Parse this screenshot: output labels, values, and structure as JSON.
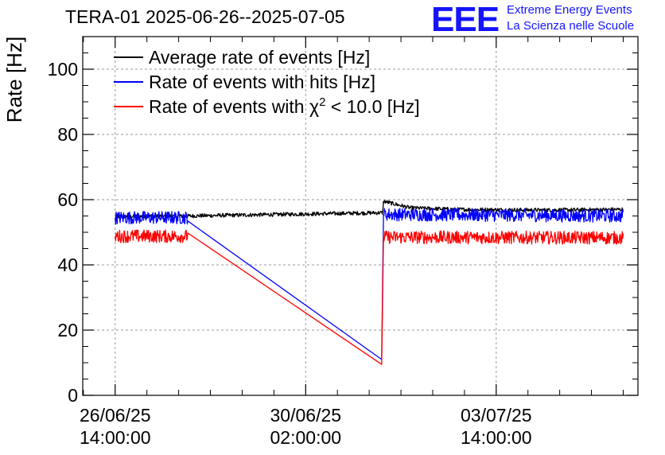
{
  "header": {
    "title": "TERA-01 2025-06-26--2025-07-05",
    "logo_text": "EEE",
    "logo_line1": "Extreme Energy Events",
    "logo_line2": "La Scienza nelle Scuole"
  },
  "chart_data": {
    "type": "line",
    "ylabel": "Rate [Hz]",
    "xlabel": "",
    "ylim": [
      0,
      110
    ],
    "yticks": [
      0,
      20,
      40,
      60,
      80,
      100
    ],
    "xlim_hours": [
      -14.3,
      230.5
    ],
    "xticks": [
      {
        "hours": 0,
        "line1": "26/06/25",
        "line2": "14:00:00"
      },
      {
        "hours": 84,
        "line1": "30/06/25",
        "line2": "02:00:00"
      },
      {
        "hours": 168,
        "line1": "03/07/25",
        "line2": "14:00:00"
      }
    ],
    "grid": true,
    "legend_position": "top-left",
    "legend": [
      {
        "label_main": "Average rate of events [Hz]",
        "label_sup": "",
        "label_tail": "",
        "color": "#000000"
      },
      {
        "label_main": "Rate of events with hits [Hz]",
        "label_sup": "",
        "label_tail": "",
        "color": "#0000ff"
      },
      {
        "label_main": "Rate of events with χ",
        "label_sup": "2",
        "label_tail": " < 10.0 [Hz]",
        "color": "#ff0000"
      }
    ],
    "series": [
      {
        "name": "Average rate of events [Hz]",
        "color": "#000000",
        "points": [
          {
            "x_hours": 0,
            "y": 54.8
          },
          {
            "x_hours": 32,
            "y": 55.0
          },
          {
            "x_hours": 118,
            "y": 56.0
          },
          {
            "x_hours": 118.3,
            "y": 59.5
          },
          {
            "x_hours": 130,
            "y": 57.5
          },
          {
            "x_hours": 150,
            "y": 57.0
          },
          {
            "x_hours": 190,
            "y": 56.8
          },
          {
            "x_hours": 224,
            "y": 57.0
          }
        ]
      },
      {
        "name": "Rate of events with hits [Hz]",
        "color": "#0000ff",
        "points": [
          {
            "x_hours": 0,
            "y": 54.5
          },
          {
            "x_hours": 32,
            "y": 54.5
          },
          {
            "x_hours": 117.5,
            "y": 11.0
          },
          {
            "x_hours": 118.3,
            "y": 55.5
          },
          {
            "x_hours": 224,
            "y": 55.0
          }
        ]
      },
      {
        "name": "Rate of events with χ² < 10.0 [Hz]",
        "color": "#ff0000",
        "points": [
          {
            "x_hours": 0,
            "y": 48.8
          },
          {
            "x_hours": 32,
            "y": 48.8
          },
          {
            "x_hours": 117.5,
            "y": 9.5
          },
          {
            "x_hours": 118.3,
            "y": 48.5
          },
          {
            "x_hours": 224,
            "y": 48.3
          }
        ]
      }
    ]
  }
}
